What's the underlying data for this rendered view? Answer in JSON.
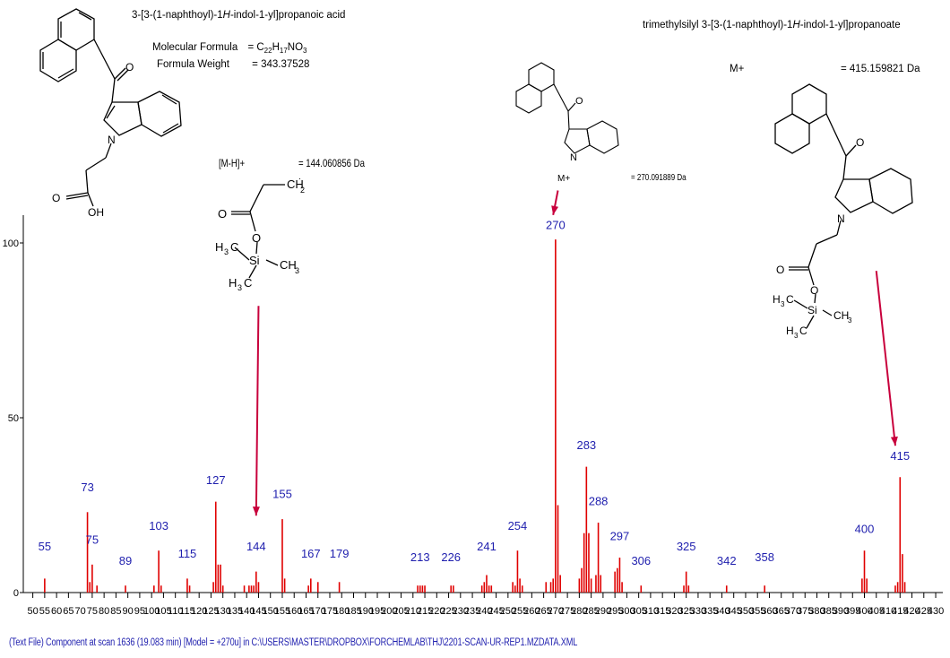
{
  "compound_left": {
    "name_prefix": "3-[3-(1-naphthoyl)-1",
    "name_italic": "H",
    "name_suffix": "-indol-1-yl]propanoic acid",
    "formula_label": "Molecular Formula",
    "formula_eq": "=",
    "formula_C": "C",
    "formula_C_n": "22",
    "formula_H": "H",
    "formula_H_n": "17",
    "formula_NO": "NO",
    "formula_O_n": "3",
    "weight_label": "Formula Weight",
    "weight_value": "=   343.37528",
    "atom_O": "O",
    "atom_N": "N",
    "atom_OH": "OH"
  },
  "compound_right": {
    "name_prefix": "trimethylsilyl 3-[3-(1-naphthoyl)-1",
    "name_italic": "H",
    "name_suffix": "-indol-1-yl]propanoate",
    "ion_label": "M+",
    "ion_value": "= 415.159821 Da"
  },
  "fragment_144": {
    "label": "[M-H]+",
    "value": "= 144.060856 Da"
  },
  "fragment_270": {
    "label": "M+",
    "value": "= 270.091889 Da"
  },
  "footer_text": "(Text File) Component at scan 1636 (19.083 min) [Model = +270u] in C:\\USERS\\MASTER\\DROPBOX\\FORCHEMLAB\\THJ\\2201-SCAN-UR-REP1.MZDATA.XML",
  "colors": {
    "peak": "#e00000",
    "label": "#1f1fae",
    "arrow": "#c8003c"
  },
  "chart_data": {
    "type": "bar",
    "subtype": "mass-spectrum",
    "xlim": [
      46,
      433
    ],
    "ylim": [
      0,
      100
    ],
    "x_ticks": [
      50,
      55,
      60,
      65,
      70,
      75,
      80,
      85,
      90,
      95,
      100,
      105,
      110,
      115,
      120,
      125,
      130,
      135,
      140,
      145,
      150,
      155,
      160,
      165,
      170,
      175,
      180,
      185,
      190,
      195,
      200,
      205,
      210,
      215,
      220,
      225,
      230,
      235,
      240,
      245,
      250,
      255,
      260,
      265,
      270,
      275,
      280,
      285,
      290,
      295,
      300,
      305,
      310,
      315,
      320,
      325,
      330,
      335,
      340,
      345,
      350,
      355,
      360,
      365,
      370,
      375,
      380,
      385,
      390,
      395,
      400,
      405,
      410,
      415,
      420,
      425,
      430
    ],
    "y_ticks": [
      0,
      50,
      100
    ],
    "peaks": [
      [
        55,
        4
      ],
      [
        73,
        23
      ],
      [
        74,
        3
      ],
      [
        75,
        8
      ],
      [
        77,
        2
      ],
      [
        89,
        2
      ],
      [
        101,
        2
      ],
      [
        103,
        12
      ],
      [
        104,
        2
      ],
      [
        115,
        4
      ],
      [
        116,
        2
      ],
      [
        126,
        3
      ],
      [
        127,
        26
      ],
      [
        128,
        8
      ],
      [
        129,
        8
      ],
      [
        130,
        2
      ],
      [
        139,
        2
      ],
      [
        141,
        2
      ],
      [
        142,
        2
      ],
      [
        143,
        2
      ],
      [
        144,
        6
      ],
      [
        145,
        3
      ],
      [
        155,
        21
      ],
      [
        156,
        4
      ],
      [
        166,
        2
      ],
      [
        167,
        4
      ],
      [
        170,
        3
      ],
      [
        179,
        3
      ],
      [
        212,
        2
      ],
      [
        213,
        2
      ],
      [
        214,
        2
      ],
      [
        215,
        2
      ],
      [
        226,
        2
      ],
      [
        227,
        2
      ],
      [
        239,
        2
      ],
      [
        240,
        3
      ],
      [
        241,
        5
      ],
      [
        242,
        2
      ],
      [
        243,
        2
      ],
      [
        252,
        3
      ],
      [
        253,
        2
      ],
      [
        254,
        12
      ],
      [
        255,
        4
      ],
      [
        256,
        2
      ],
      [
        266,
        3
      ],
      [
        268,
        3
      ],
      [
        269,
        4
      ],
      [
        270,
        101
      ],
      [
        271,
        25
      ],
      [
        272,
        5
      ],
      [
        280,
        4
      ],
      [
        281,
        7
      ],
      [
        282,
        17
      ],
      [
        283,
        36
      ],
      [
        284,
        17
      ],
      [
        285,
        4
      ],
      [
        287,
        5
      ],
      [
        288,
        20
      ],
      [
        289,
        5
      ],
      [
        295,
        6
      ],
      [
        296,
        7
      ],
      [
        297,
        10
      ],
      [
        298,
        3
      ],
      [
        306,
        2
      ],
      [
        324,
        2
      ],
      [
        325,
        6
      ],
      [
        326,
        2
      ],
      [
        342,
        2
      ],
      [
        358,
        2
      ],
      [
        399,
        4
      ],
      [
        400,
        12
      ],
      [
        401,
        4
      ],
      [
        413,
        2
      ],
      [
        414,
        3
      ],
      [
        415,
        33
      ],
      [
        416,
        11
      ],
      [
        417,
        3
      ]
    ],
    "peak_labels": [
      {
        "mz": "55",
        "x": 55,
        "y": 12
      },
      {
        "mz": "73",
        "x": 73,
        "y": 29
      },
      {
        "mz": "75",
        "x": 75,
        "y": 14
      },
      {
        "mz": "89",
        "x": 89,
        "y": 8
      },
      {
        "mz": "103",
        "x": 103,
        "y": 18
      },
      {
        "mz": "115",
        "x": 115,
        "y": 10
      },
      {
        "mz": "127",
        "x": 127,
        "y": 31
      },
      {
        "mz": "144",
        "x": 144,
        "y": 12
      },
      {
        "mz": "155",
        "x": 155,
        "y": 27
      },
      {
        "mz": "167",
        "x": 167,
        "y": 10
      },
      {
        "mz": "179",
        "x": 179,
        "y": 10
      },
      {
        "mz": "213",
        "x": 213,
        "y": 9
      },
      {
        "mz": "226",
        "x": 226,
        "y": 9
      },
      {
        "mz": "241",
        "x": 241,
        "y": 12
      },
      {
        "mz": "254",
        "x": 254,
        "y": 18
      },
      {
        "mz": "270",
        "x": 270,
        "y": 104
      },
      {
        "mz": "283",
        "x": 283,
        "y": 41
      },
      {
        "mz": "288",
        "x": 288,
        "y": 25
      },
      {
        "mz": "297",
        "x": 297,
        "y": 15
      },
      {
        "mz": "306",
        "x": 306,
        "y": 8
      },
      {
        "mz": "325",
        "x": 325,
        "y": 12
      },
      {
        "mz": "342",
        "x": 342,
        "y": 8
      },
      {
        "mz": "358",
        "x": 358,
        "y": 9
      },
      {
        "mz": "400",
        "x": 400,
        "y": 17
      },
      {
        "mz": "415",
        "x": 415,
        "y": 38
      }
    ],
    "arrows": [
      {
        "from": [
          145,
          82
        ],
        "to": [
          144,
          22
        ]
      },
      {
        "from": [
          271,
          115
        ],
        "to": [
          269,
          108
        ]
      },
      {
        "from": [
          405,
          92
        ],
        "to": [
          413,
          42
        ]
      }
    ]
  }
}
